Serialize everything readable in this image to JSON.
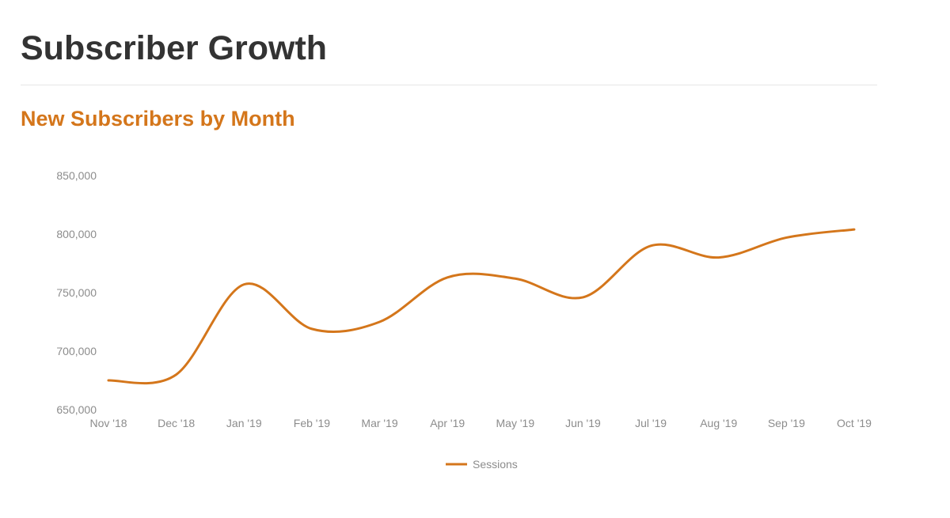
{
  "page": {
    "title": "Subscriber Growth"
  },
  "chart_data": {
    "type": "line",
    "title": "New Subscribers by Month",
    "xlabel": "",
    "ylabel": "",
    "ylim": [
      650000,
      850000
    ],
    "yticks": [
      650000,
      700000,
      750000,
      800000,
      850000
    ],
    "ytick_labels": [
      "650,000",
      "700,000",
      "750,000",
      "800,000",
      "850,000"
    ],
    "grid": false,
    "smooth": true,
    "legend_position": "bottom",
    "categories": [
      "Nov '18",
      "Dec '18",
      "Jan '19",
      "Feb '19",
      "Mar '19",
      "Apr '19",
      "May '19",
      "Jun '19",
      "Jul '19",
      "Aug '19",
      "Sep '19",
      "Oct '19"
    ],
    "series": [
      {
        "name": "Sessions",
        "color": "#d4761b",
        "values": [
          675000,
          680000,
          757000,
          719000,
          725000,
          763000,
          762000,
          746000,
          790000,
          780000,
          797000,
          804000
        ]
      }
    ],
    "title_color": "#d4761b"
  }
}
